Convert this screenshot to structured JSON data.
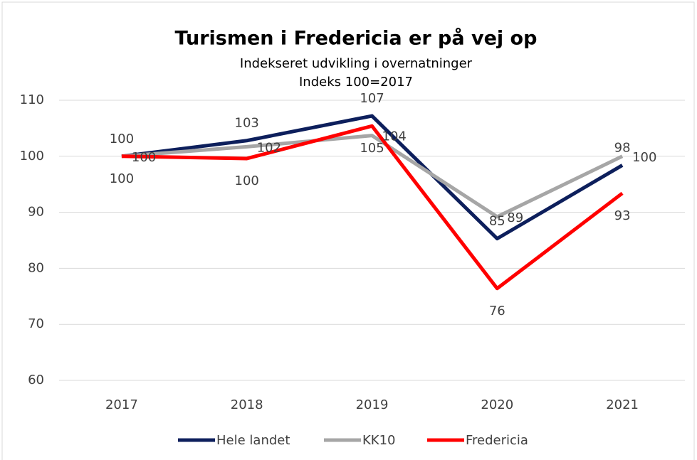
{
  "chart_data": {
    "type": "line",
    "title": "Turismen i Fredericia er på vej op",
    "subtitle": [
      "Indekseret udvikling i overnatninger",
      "Indeks 100=2017"
    ],
    "categories": [
      "2017",
      "2018",
      "2019",
      "2020",
      "2021"
    ],
    "series": [
      {
        "name": "Hele landet",
        "color": "#0d1f5c",
        "values": [
          100,
          102.8,
          107.2,
          85.3,
          98.4
        ],
        "value_labels": [
          "100",
          "103",
          "107",
          "85",
          "98"
        ]
      },
      {
        "name": "KK10",
        "color": "#a6a6a6",
        "values": [
          100,
          101.7,
          103.7,
          89.2,
          100
        ],
        "value_labels": [
          "100",
          "102",
          "104",
          "89",
          "100"
        ]
      },
      {
        "name": "Fredericia",
        "color": "#ff0000",
        "values": [
          100,
          99.6,
          105.4,
          76.4,
          93.4
        ],
        "value_labels": [
          "100",
          "100",
          "105",
          "76",
          "93"
        ]
      }
    ],
    "ylim": [
      60,
      110
    ],
    "yticks": [
      60,
      70,
      80,
      90,
      100,
      110
    ],
    "grid": true,
    "legend": "bottom"
  }
}
